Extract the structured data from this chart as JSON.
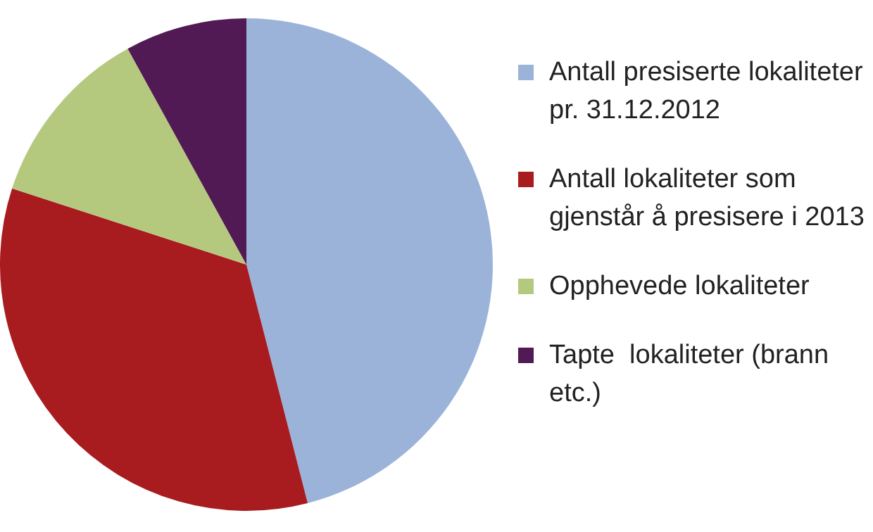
{
  "chart_data": {
    "type": "pie",
    "categories": [
      "Antall presiserte lokaliteter pr. 31.12.2012",
      "Antall lokaliteter som gjenstår å presisere i 2013",
      "Opphevede lokaliteter",
      "Tapte  lokaliteter (brann etc.)"
    ],
    "values": [
      46,
      34,
      12,
      8
    ],
    "colors": [
      "#9bb3d9",
      "#a81c1f",
      "#b5c97e",
      "#511a54"
    ],
    "legend": "right"
  }
}
